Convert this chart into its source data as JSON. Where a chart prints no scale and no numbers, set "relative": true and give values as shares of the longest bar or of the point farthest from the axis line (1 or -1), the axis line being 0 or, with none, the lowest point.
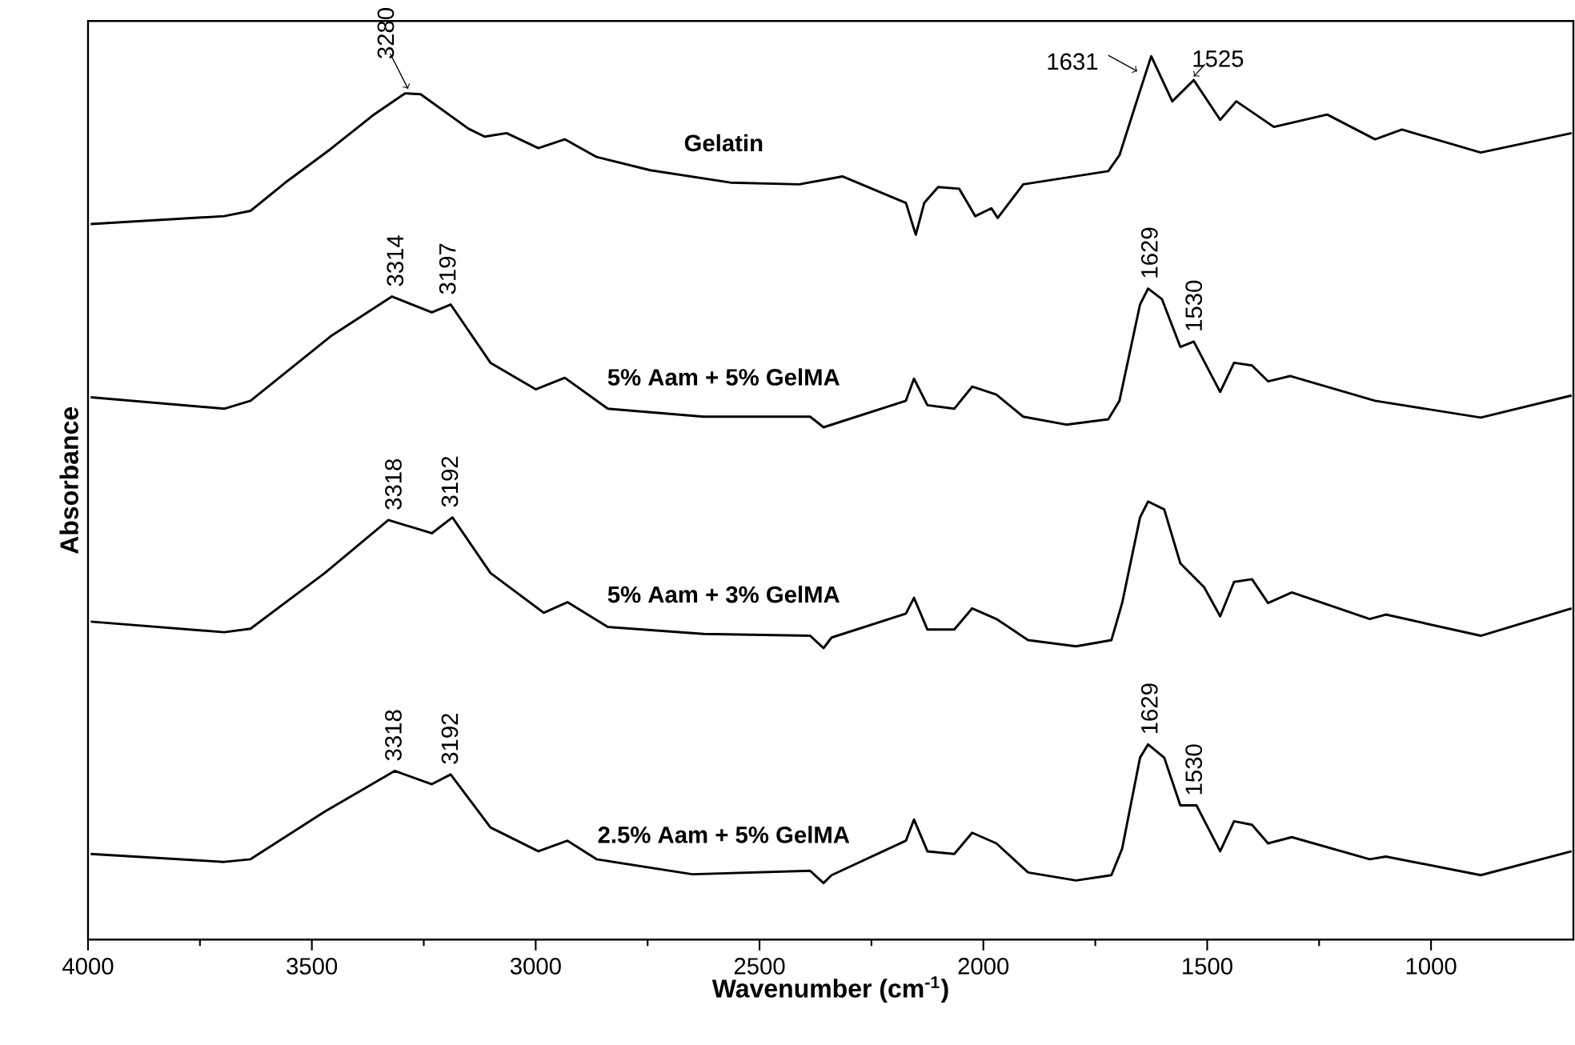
{
  "chart_data": {
    "type": "line",
    "relative": true,
    "xlabel": "Wavenumber (cm$^{-1}$)",
    "ylabel": "Absorbance",
    "xlim": [
      4000,
      682
    ],
    "xticks": [
      4000,
      3500,
      3000,
      2500,
      2000,
      1500,
      1000
    ],
    "legend": false,
    "grid": false,
    "marker": "none",
    "line_style": "solid",
    "series": [
      {
        "name": "Gelatin",
        "color": "#000000",
        "x": [
          3994,
          3696,
          3637,
          3554,
          3458,
          3364,
          3292,
          3257,
          3150,
          3114,
          3065,
          2994,
          2935,
          2864,
          2744,
          2565,
          2411,
          2315,
          2173,
          2151,
          2132,
          2101,
          2054,
          2018,
          1982,
          1968,
          1911,
          1721,
          1696,
          1650,
          1625,
          1578,
          1530,
          1471,
          1435,
          1351,
          1232,
          1125,
          1065,
          889,
          686
        ],
        "values": [
          0.81,
          0.819,
          0.825,
          0.859,
          0.895,
          0.933,
          0.958,
          0.957,
          0.918,
          0.909,
          0.913,
          0.896,
          0.906,
          0.886,
          0.871,
          0.857,
          0.855,
          0.864,
          0.834,
          0.798,
          0.834,
          0.852,
          0.85,
          0.819,
          0.828,
          0.817,
          0.855,
          0.87,
          0.888,
          0.961,
          1.0,
          0.949,
          0.973,
          0.928,
          0.949,
          0.92,
          0.934,
          0.906,
          0.917,
          0.891,
          0.913
        ]
      },
      {
        "name": "5% Aam + 5% GelMA",
        "color": "#000000",
        "x": [
          3994,
          3696,
          3637,
          3458,
          3321,
          3232,
          3190,
          3101,
          3000,
          2935,
          2839,
          2625,
          2387,
          2357,
          2173,
          2155,
          2125,
          2065,
          2025,
          1971,
          1911,
          1815,
          1721,
          1696,
          1650,
          1632,
          1601,
          1560,
          1530,
          1471,
          1440,
          1400,
          1364,
          1315,
          1125,
          889,
          686
        ],
        "values": [
          0.614,
          0.601,
          0.61,
          0.683,
          0.728,
          0.71,
          0.719,
          0.653,
          0.623,
          0.636,
          0.601,
          0.592,
          0.592,
          0.58,
          0.61,
          0.635,
          0.605,
          0.601,
          0.626,
          0.617,
          0.592,
          0.583,
          0.589,
          0.61,
          0.719,
          0.737,
          0.725,
          0.671,
          0.677,
          0.62,
          0.653,
          0.65,
          0.632,
          0.638,
          0.61,
          0.591,
          0.616
        ]
      },
      {
        "name": "5% Aam + 3% GelMA",
        "color": "#000000",
        "x": [
          3994,
          3696,
          3637,
          3471,
          3329,
          3232,
          3186,
          3101,
          2982,
          2929,
          2839,
          2625,
          2387,
          2357,
          2339,
          2173,
          2155,
          2125,
          2065,
          2025,
          1971,
          1900,
          1793,
          1714,
          1690,
          1650,
          1632,
          1596,
          1560,
          1507,
          1471,
          1440,
          1400,
          1364,
          1311,
          1137,
          1101,
          889,
          686
        ],
        "values": [
          0.36,
          0.348,
          0.352,
          0.415,
          0.475,
          0.46,
          0.478,
          0.415,
          0.37,
          0.382,
          0.354,
          0.346,
          0.344,
          0.33,
          0.342,
          0.369,
          0.387,
          0.351,
          0.351,
          0.375,
          0.363,
          0.339,
          0.332,
          0.339,
          0.381,
          0.478,
          0.496,
          0.487,
          0.426,
          0.399,
          0.366,
          0.405,
          0.408,
          0.381,
          0.393,
          0.363,
          0.368,
          0.344,
          0.375
        ]
      },
      {
        "name": "2.5% Aam + 5% GelMA",
        "color": "#000000",
        "x": [
          3994,
          3696,
          3637,
          3471,
          3315,
          3232,
          3190,
          3101,
          2994,
          2929,
          2864,
          2650,
          2387,
          2357,
          2339,
          2173,
          2155,
          2125,
          2065,
          2025,
          1971,
          1900,
          1793,
          1714,
          1690,
          1650,
          1632,
          1596,
          1560,
          1524,
          1471,
          1440,
          1400,
          1364,
          1311,
          1137,
          1101,
          889,
          686
        ],
        "values": [
          0.097,
          0.088,
          0.091,
          0.145,
          0.191,
          0.176,
          0.187,
          0.127,
          0.1,
          0.112,
          0.091,
          0.074,
          0.078,
          0.064,
          0.073,
          0.112,
          0.136,
          0.1,
          0.097,
          0.121,
          0.109,
          0.076,
          0.067,
          0.073,
          0.103,
          0.206,
          0.221,
          0.206,
          0.152,
          0.152,
          0.1,
          0.134,
          0.13,
          0.109,
          0.116,
          0.091,
          0.094,
          0.073,
          0.1
        ]
      }
    ],
    "annotations": [
      {
        "text": "3280",
        "x": 3280,
        "y": 0.958
      },
      {
        "text": "1631",
        "x": 1631,
        "y": 0.997
      },
      {
        "text": "1525",
        "x": 1525,
        "y": 0.973
      },
      {
        "text": "3314",
        "x": 3314,
        "y": 0.728
      },
      {
        "text": "3197",
        "x": 3197,
        "y": 0.719
      },
      {
        "text": "1629",
        "x": 1629,
        "y": 0.737
      },
      {
        "text": "1530",
        "x": 1530,
        "y": 0.677
      },
      {
        "text": "3318",
        "x": 3318,
        "y": 0.475
      },
      {
        "text": "3192",
        "x": 3192,
        "y": 0.478
      },
      {
        "text": "3318",
        "x": 3318,
        "y": 0.191
      },
      {
        "text": "3192",
        "x": 3192,
        "y": 0.187
      },
      {
        "text": "1629",
        "x": 1629,
        "y": 0.221
      },
      {
        "text": "1530",
        "x": 1530,
        "y": 0.152
      }
    ]
  }
}
